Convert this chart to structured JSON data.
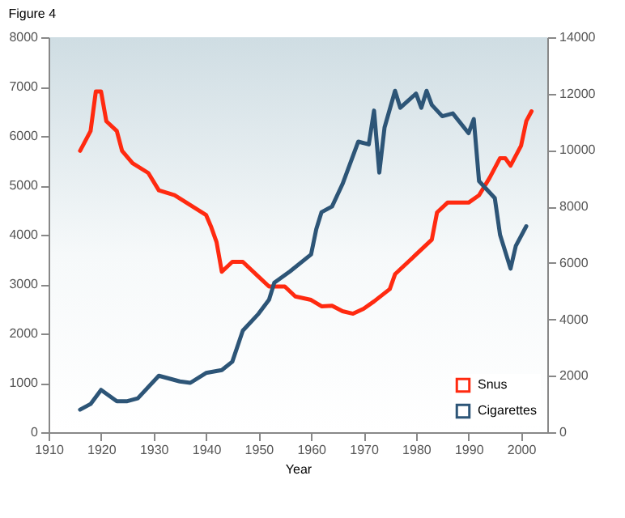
{
  "chart_data": {
    "type": "line",
    "title": "Figure 4",
    "xlabel": "Year",
    "xlim": [
      1910,
      2005
    ],
    "xticks": [
      1910,
      1920,
      1930,
      1940,
      1950,
      1960,
      1970,
      1980,
      1990,
      2000
    ],
    "ylim": [
      0,
      8000
    ],
    "yticks": [
      0,
      1000,
      2000,
      3000,
      4000,
      5000,
      6000,
      7000,
      8000
    ],
    "y2lim": [
      0,
      14000
    ],
    "y2ticks": [
      0,
      2000,
      4000,
      6000,
      8000,
      10000,
      12000,
      14000
    ],
    "grid": false,
    "legend": "bottom right",
    "marker": "none",
    "line_style": "solid",
    "series": [
      {
        "name": "Snus",
        "color": "#ff2a10",
        "x": [
          1916,
          1918,
          1919,
          1920,
          1921,
          1923,
          1924,
          1926,
          1929,
          1931,
          1934,
          1937,
          1940,
          1941,
          1942,
          1943,
          1945,
          1947,
          1950,
          1952,
          1955,
          1957,
          1960,
          1962,
          1964,
          1966,
          1968,
          1970,
          1972,
          1975,
          1976,
          1980,
          1983,
          1984,
          1986,
          1990,
          1992,
          1994,
          1996,
          1997,
          1998,
          2000,
          2001,
          2002
        ],
        "values": [
          5700,
          6100,
          6900,
          6900,
          6300,
          6100,
          5700,
          5450,
          5250,
          4900,
          4800,
          4600,
          4400,
          4150,
          3850,
          3250,
          3450,
          3450,
          3150,
          2950,
          2950,
          2750,
          2680,
          2550,
          2560,
          2450,
          2400,
          2500,
          2650,
          2900,
          3200,
          3600,
          3900,
          4450,
          4650,
          4650,
          4800,
          5150,
          5550,
          5550,
          5400,
          5800,
          6300,
          6500
        ]
      },
      {
        "name": "Cigarettes",
        "color": "#2d5577",
        "axis": "y2",
        "x": [
          1916,
          1918,
          1920,
          1923,
          1925,
          1927,
          1931,
          1935,
          1937,
          1940,
          1943,
          1945,
          1947,
          1950,
          1952,
          1953,
          1956,
          1960,
          1961,
          1962,
          1964,
          1966,
          1968,
          1969,
          1971,
          1972,
          1973,
          1974,
          1976,
          1977,
          1980,
          1981,
          1982,
          1983,
          1985,
          1987,
          1990,
          1991,
          1992,
          1993,
          1995,
          1996,
          1998,
          1999,
          2001
        ],
        "values": [
          800,
          1000,
          1500,
          1100,
          1100,
          1200,
          2000,
          1800,
          1750,
          2100,
          2200,
          2500,
          3600,
          4200,
          4700,
          5300,
          5700,
          6300,
          7200,
          7800,
          8000,
          8800,
          9800,
          10300,
          10200,
          11400,
          9200,
          10800,
          12100,
          11500,
          12000,
          11500,
          12100,
          11600,
          11200,
          11300,
          10600,
          11100,
          8900,
          8700,
          8300,
          7000,
          5800,
          6600,
          7300
        ]
      }
    ]
  }
}
